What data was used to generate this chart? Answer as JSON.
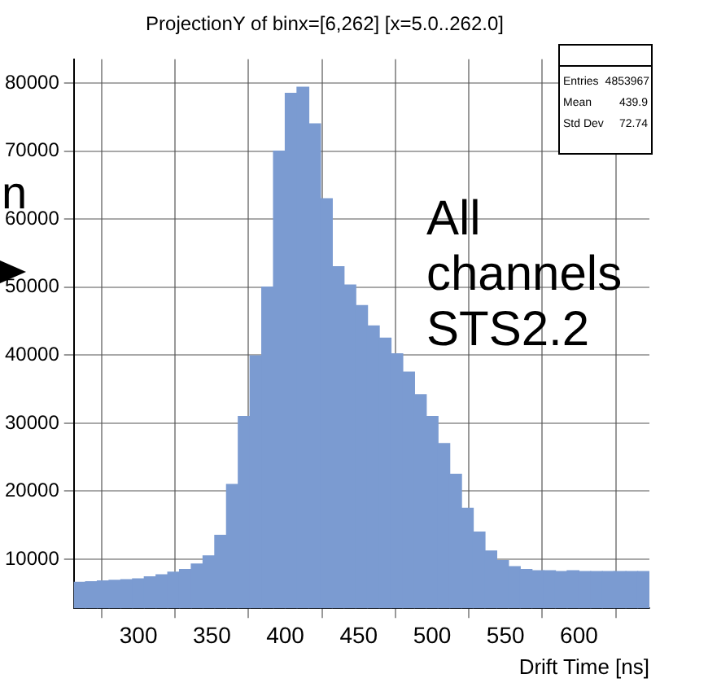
{
  "chart_data": {
    "type": "histogram",
    "title": "ProjectionY of binx=[6,262] [x=5.0..262.0]",
    "xlabel": "Drift Time [ns]",
    "bins": [
      256,
      264,
      272,
      280,
      288,
      296,
      304,
      312,
      320,
      328,
      336,
      344,
      352,
      360,
      368,
      376,
      384,
      392,
      400,
      408,
      416,
      424,
      432,
      440,
      448,
      456,
      464,
      472,
      480,
      488,
      496,
      504,
      512,
      520,
      528,
      536,
      544,
      552,
      560,
      568,
      576,
      584,
      592,
      600,
      608,
      616,
      624,
      632,
      640,
      648
    ],
    "values": [
      6600,
      6700,
      6800,
      6900,
      7000,
      7100,
      7400,
      7700,
      8100,
      8500,
      9300,
      10500,
      13500,
      21000,
      31000,
      39900,
      50000,
      70000,
      78500,
      79400,
      74000,
      63000,
      53000,
      50300,
      47300,
      44300,
      42500,
      40200,
      37500,
      34200,
      31000,
      27000,
      22500,
      17500,
      14000,
      11200,
      9800,
      8900,
      8500,
      8300,
      8300,
      8200,
      8300,
      8200,
      8200,
      8200,
      8200,
      8200,
      8200
    ],
    "color": "#7b9bd1",
    "xlim": [
      256,
      648
    ],
    "xticks": [
      300,
      350,
      400,
      450,
      500,
      550,
      600
    ],
    "ylim": [
      2800,
      83500
    ],
    "yticks": [
      10000,
      20000,
      30000,
      40000,
      50000,
      60000,
      70000,
      80000
    ],
    "grid": true,
    "legend": false,
    "annotations": [
      "All channels STS2.2",
      "Entries 4853967",
      "Mean 439.9",
      "Std Dev 72.74",
      "n"
    ]
  }
}
